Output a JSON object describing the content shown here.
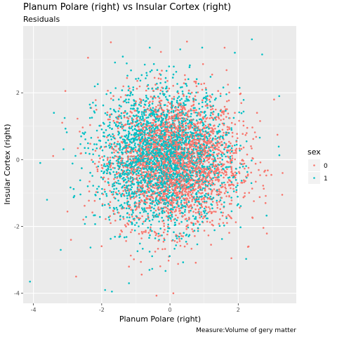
{
  "chart_data": {
    "type": "scatter",
    "title": "Planum Polare (right) vs Insular Cortex (right)",
    "subtitle": "Residuals",
    "xlabel": "Planum Polare (right)",
    "ylabel": "Insular Cortex (right)",
    "caption": "Measure:Volume of gery matter",
    "xlim": [
      -4.3,
      3.7
    ],
    "ylim": [
      -4.3,
      4.0
    ],
    "x_ticks": [
      -4,
      -2,
      0,
      2
    ],
    "y_ticks": [
      -4,
      -2,
      0,
      2
    ],
    "x_tick_labels": [
      "-4",
      "-2",
      "0",
      "2"
    ],
    "y_tick_labels": [
      "-4",
      "-2",
      "0",
      "2"
    ],
    "grid": true,
    "legend": {
      "title": "sex",
      "placement": "right",
      "entries": [
        {
          "label": "0",
          "color": "#F8766D"
        },
        {
          "label": "1",
          "color": "#00BFC4"
        }
      ]
    },
    "series": [
      {
        "name": "0",
        "color": "#F8766D",
        "count": 2600,
        "center": [
          0.15,
          -0.05
        ],
        "sd": [
          0.95,
          1.0
        ],
        "points": [
          [
            -2.4,
            3.05
          ],
          [
            1.6,
            3.35
          ],
          [
            2.55,
            1.4
          ],
          [
            3.05,
            1.8
          ],
          [
            3.3,
            -0.4
          ],
          [
            2.8,
            -1.3
          ],
          [
            0.1,
            -4.0
          ],
          [
            -2.75,
            -3.5
          ],
          [
            -2.9,
            -2.4
          ],
          [
            1.8,
            -2.95
          ],
          [
            -1.2,
            -3.2
          ]
        ]
      },
      {
        "name": "1",
        "color": "#00BFC4",
        "count": 2600,
        "center": [
          -0.2,
          0.05
        ],
        "sd": [
          0.95,
          1.0
        ],
        "points": [
          [
            -4.1,
            -3.65
          ],
          [
            -3.8,
            -0.1
          ],
          [
            -3.6,
            -1.2
          ],
          [
            -1.9,
            -3.9
          ],
          [
            -1.7,
            -3.95
          ],
          [
            -1.2,
            -3.7
          ],
          [
            2.4,
            3.6
          ],
          [
            2.7,
            3.15
          ],
          [
            0.3,
            3.3
          ],
          [
            -3.4,
            1.4
          ],
          [
            -3.2,
            -2.7
          ],
          [
            1.9,
            3.2
          ],
          [
            3.2,
            1.9
          ],
          [
            -0.6,
            -3.3
          ]
        ]
      }
    ]
  }
}
